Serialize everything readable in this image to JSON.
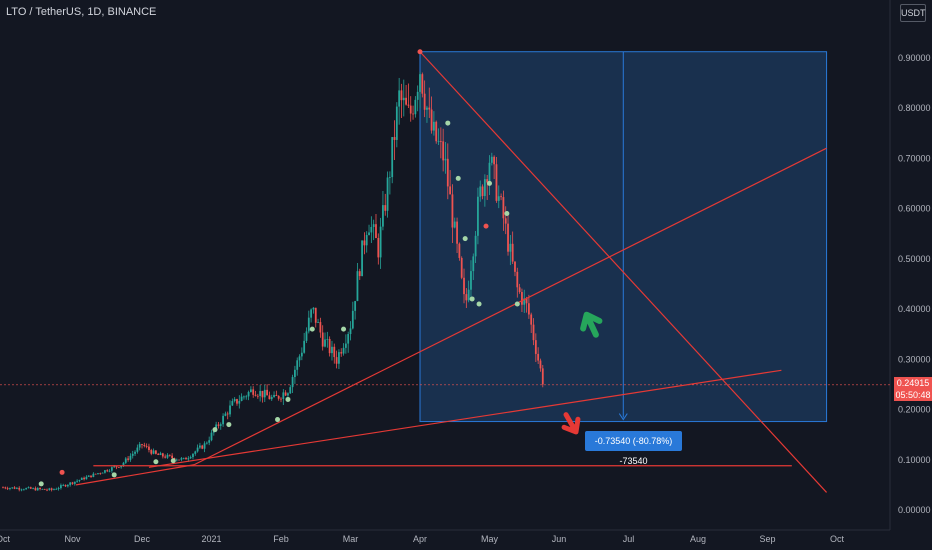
{
  "header": {
    "symbol_title": "LTO / TetherUS, 1D, BINANCE",
    "unit": "USDT"
  },
  "price_tag": {
    "price": "0.24915",
    "countdown": "05:50:48",
    "color": "#ef5350"
  },
  "measure": {
    "label": "-0.73540 (-80.78%) -73540",
    "color": "#2979d9"
  },
  "colors": {
    "background": "#131722",
    "up": "#26a69a",
    "down": "#ef5350",
    "trendline": "#e53935",
    "measure_fill": "#1c3a5e",
    "measure_line": "#2979d9",
    "arrow_up": "#26a65b",
    "arrow_down": "#e53935"
  },
  "icons": [
    "arrow-up-icon",
    "arrow-down-icon"
  ],
  "chart_data": {
    "type": "candlestick",
    "x_ticks": [
      "Oct",
      "Nov",
      "Dec",
      "2021",
      "Feb",
      "Mar",
      "Apr",
      "May",
      "Jun",
      "Jul",
      "Aug",
      "Sep",
      "Oct"
    ],
    "y_ticks": [
      "0.00000",
      "0.10000",
      "0.20000",
      "0.30000",
      "0.40000",
      "0.50000",
      "0.60000",
      "0.70000",
      "0.80000",
      "0.90000"
    ],
    "ylim": [
      0,
      1
    ],
    "grid": false,
    "trend": [
      {
        "month": 0,
        "price": 0.045
      },
      {
        "month": 0.7,
        "price": 0.04
      },
      {
        "month": 1.2,
        "price": 0.065
      },
      {
        "month": 1.7,
        "price": 0.09
      },
      {
        "month": 2.0,
        "price": 0.13
      },
      {
        "month": 2.2,
        "price": 0.11
      },
      {
        "month": 2.6,
        "price": 0.1
      },
      {
        "month": 2.9,
        "price": 0.13
      },
      {
        "month": 3.1,
        "price": 0.17
      },
      {
        "month": 3.3,
        "price": 0.21
      },
      {
        "month": 3.6,
        "price": 0.24
      },
      {
        "month": 3.9,
        "price": 0.22
      },
      {
        "month": 4.1,
        "price": 0.24
      },
      {
        "month": 4.3,
        "price": 0.32
      },
      {
        "month": 4.45,
        "price": 0.4
      },
      {
        "month": 4.6,
        "price": 0.34
      },
      {
        "month": 4.8,
        "price": 0.3
      },
      {
        "month": 5.0,
        "price": 0.37
      },
      {
        "month": 5.1,
        "price": 0.46
      },
      {
        "month": 5.25,
        "price": 0.58
      },
      {
        "month": 5.4,
        "price": 0.52
      },
      {
        "month": 5.55,
        "price": 0.66
      },
      {
        "month": 5.7,
        "price": 0.82
      },
      {
        "month": 5.85,
        "price": 0.78
      },
      {
        "month": 6.0,
        "price": 0.88
      },
      {
        "month": 6.15,
        "price": 0.76
      },
      {
        "month": 6.35,
        "price": 0.7
      },
      {
        "month": 6.5,
        "price": 0.55
      },
      {
        "month": 6.65,
        "price": 0.4
      },
      {
        "month": 6.85,
        "price": 0.62
      },
      {
        "month": 7.0,
        "price": 0.7
      },
      {
        "month": 7.2,
        "price": 0.58
      },
      {
        "month": 7.4,
        "price": 0.44
      },
      {
        "month": 7.55,
        "price": 0.4
      },
      {
        "month": 7.7,
        "price": 0.3
      },
      {
        "month": 7.78,
        "price": 0.249
      }
    ],
    "trendlines": [
      {
        "from": [
          1.05,
          0.05
        ],
        "to": [
          2.75,
          0.09
        ]
      },
      {
        "from": [
          2.75,
          0.09
        ],
        "to": [
          11.85,
          0.72
        ]
      },
      {
        "from": [
          2.1,
          0.085
        ],
        "to": [
          11.2,
          0.278
        ]
      },
      {
        "from": [
          1.3,
          0.088
        ],
        "to": [
          11.35,
          0.088
        ]
      },
      {
        "from": [
          6.0,
          0.912
        ],
        "to": [
          11.85,
          0.035
        ]
      }
    ],
    "measure_box": {
      "x_from": 6.0,
      "x_to": 11.85,
      "y_from": 0.176,
      "y_to": 0.912
    },
    "last_price": 0.24915
  }
}
